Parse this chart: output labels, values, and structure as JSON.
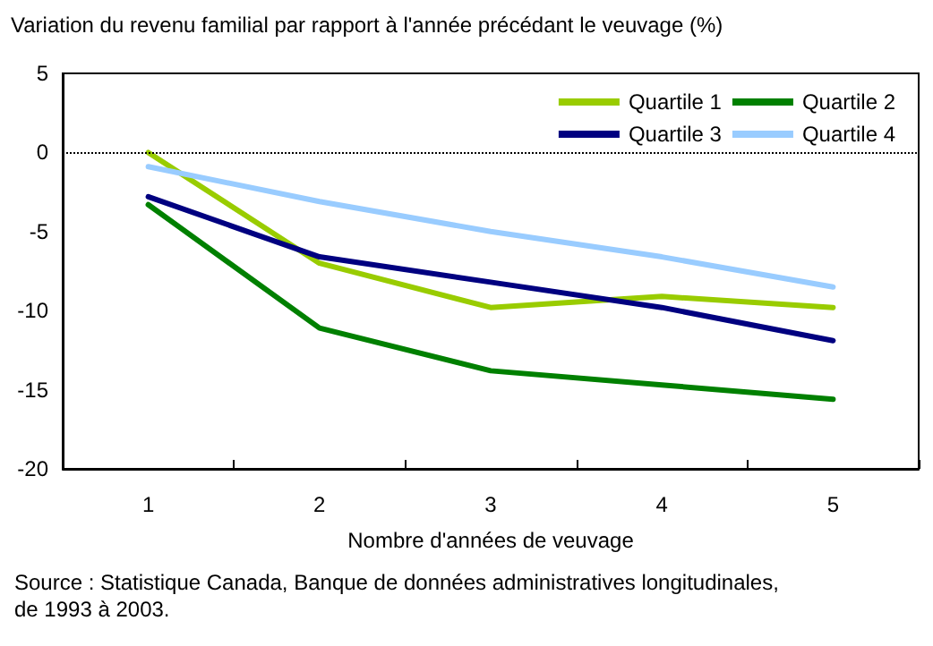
{
  "chart_data": {
    "type": "line",
    "ylabel": "Variation du revenu familial par rapport à l'année précédant le veuvage (%)",
    "xlabel": "Nombre d'années de veuvage",
    "categories": [
      "1",
      "2",
      "3",
      "4",
      "5"
    ],
    "series": [
      {
        "name": "Quartile 1",
        "color": "#99cc00",
        "values": [
          0,
          -7.0,
          -9.8,
          -9.1,
          -9.8
        ]
      },
      {
        "name": "Quartile 2",
        "color": "#008000",
        "values": [
          -3.3,
          -11.1,
          -13.8,
          -14.7,
          -15.6
        ]
      },
      {
        "name": "Quartile 3",
        "color": "#000080",
        "values": [
          -2.8,
          -6.6,
          -8.2,
          -9.8,
          -11.9
        ]
      },
      {
        "name": "Quartile 4",
        "color": "#99ccff",
        "values": [
          -0.9,
          -3.1,
          -5.0,
          -6.6,
          -8.5
        ]
      }
    ],
    "ylim": [
      -20,
      5
    ],
    "yticks": [
      -20,
      -15,
      -10,
      -5,
      0,
      5
    ],
    "grid": false,
    "legend": "top right",
    "marker": "none",
    "line_style": "solid",
    "ref_lines": [
      {
        "axis": "y",
        "value": 0,
        "color": "#000000",
        "line_style": "dotted"
      }
    ],
    "annotations": [
      "Source : Statistique Canada, Banque de données administratives longitudinales, de 1993 à 2003."
    ]
  }
}
